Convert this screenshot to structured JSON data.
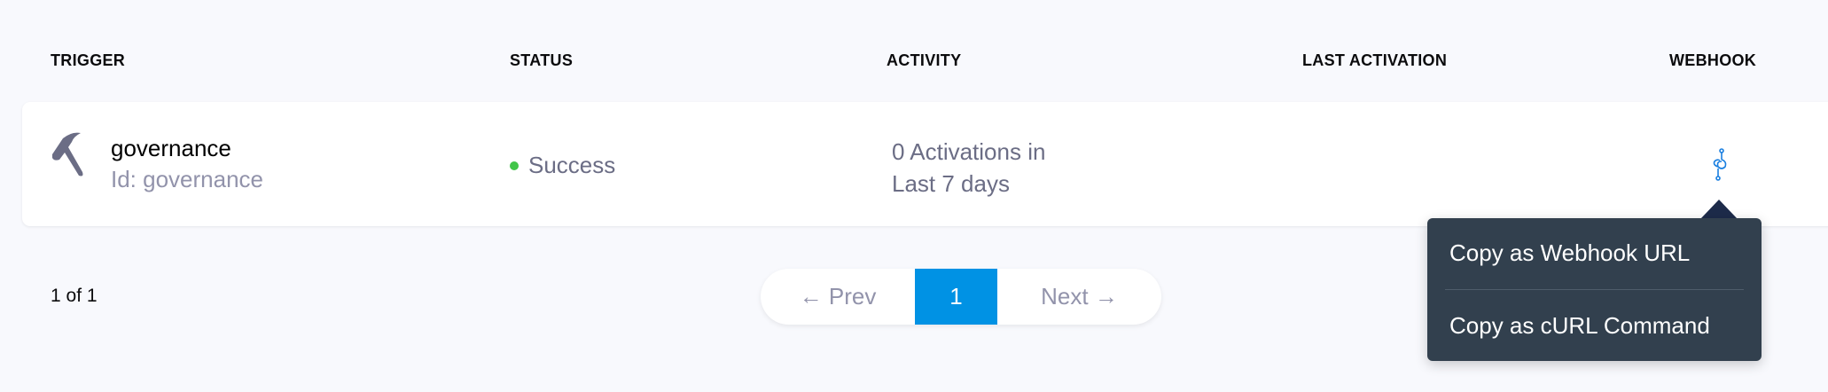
{
  "columns": [
    "TRIGGER",
    "STATUS",
    "ACTIVITY",
    "LAST ACTIVATION",
    "WEBHOOK"
  ],
  "row": {
    "name": "governance",
    "id": "Id: governance",
    "status": "Success",
    "status_color": "#42c549",
    "activity_line1": "0 Activations in",
    "activity_line2": "Last 7 days",
    "trigger_icon": "hammer-icon",
    "webhook_icon": "webhook-icon"
  },
  "pagination": {
    "count": "1 of 1",
    "prev": "← Prev",
    "page": "1",
    "next": "Next →",
    "accent": "#0092e4"
  },
  "menu": {
    "items": [
      "Copy as Webhook URL",
      "Copy as cURL Command"
    ]
  }
}
